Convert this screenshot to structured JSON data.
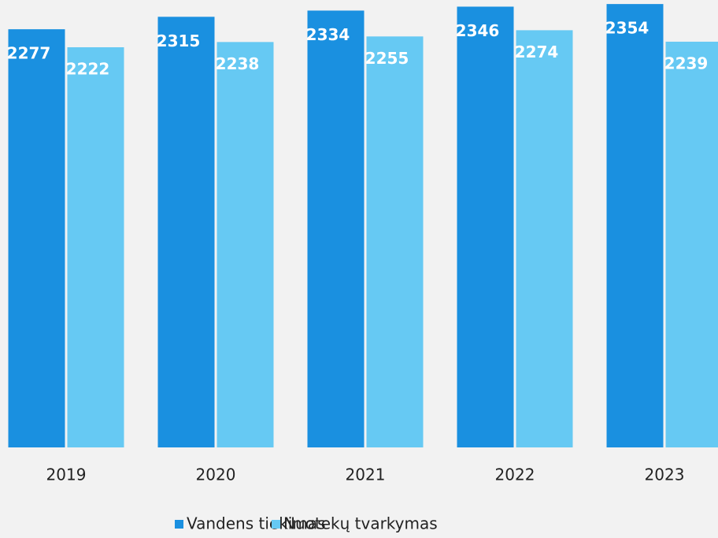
{
  "chart_data": {
    "type": "bar",
    "categories": [
      "2019",
      "2020",
      "2021",
      "2022",
      "2023"
    ],
    "series": [
      {
        "name": "Vandens tiekimas",
        "color": "#1a90e0",
        "values": [
          2277,
          2315,
          2334,
          2346,
          2354
        ]
      },
      {
        "name": "Nuotekų tvarkymas",
        "color": "#66c9f3",
        "values": [
          2222,
          2238,
          2255,
          2274,
          2239
        ]
      }
    ],
    "ylim": [
      1000,
      2400
    ]
  }
}
